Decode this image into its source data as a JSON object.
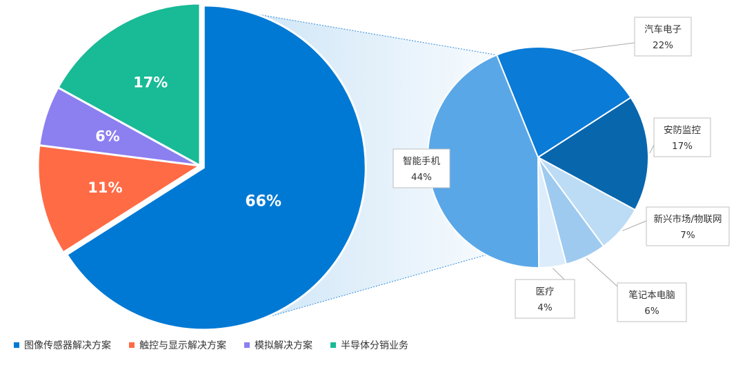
{
  "chart_data": [
    {
      "type": "pie",
      "categories": [
        "图像传感器解决方案",
        "触控与显示解决方案",
        "模拟解决方案",
        "半导体分销业务"
      ],
      "values": [
        66,
        11,
        6,
        17
      ],
      "labels": [
        "66%",
        "11%",
        "6%",
        "17%"
      ],
      "colors": [
        "#0079d4",
        "#ff6b45",
        "#8c7ff0",
        "#19ba96"
      ],
      "exploded_slice": "图像传感器解决方案",
      "legend": "bottom-left"
    },
    {
      "type": "pie",
      "breakdown_of": "图像传感器解决方案",
      "categories": [
        "汽车电子",
        "安防监控",
        "新兴市场/物联网",
        "笔记本电脑",
        "医疗",
        "智能手机"
      ],
      "values": [
        22,
        17,
        7,
        6,
        4,
        44
      ],
      "labels": [
        "22%",
        "17%",
        "7%",
        "6%",
        "4%",
        "44%"
      ],
      "colors": [
        "#0a7bd6",
        "#0866ad",
        "#bcdcf6",
        "#9fcaf0",
        "#dcecfb",
        "#5aa7e8"
      ]
    }
  ]
}
